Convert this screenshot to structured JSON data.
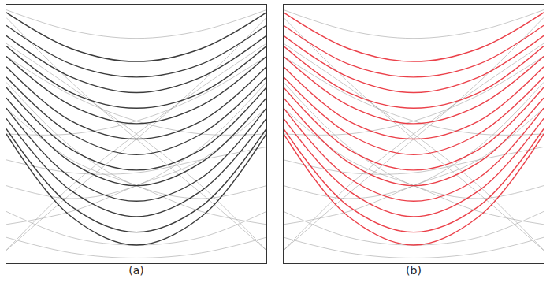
{
  "chart_data": [
    {
      "type": "line",
      "xlabel": "(a)",
      "x": [
        0,
        0.25,
        0.5,
        0.75,
        1
      ],
      "xlim": [
        0,
        1
      ],
      "ylim": [
        0,
        1
      ],
      "xticks": [],
      "yticks": [],
      "tick_labels": false,
      "grid": false,
      "line_style": "solid",
      "series": [
        {
          "color": "#9a9a9a",
          "values": [
            0.95,
            0.7,
            0.48,
            0.27,
            0.05
          ]
        },
        {
          "color": "#9a9a9a",
          "values": [
            0.05,
            0.27,
            0.48,
            0.7,
            0.95
          ]
        },
        {
          "color": "#9a9a9a",
          "values": [
            0.1,
            0.04,
            0.02,
            0.04,
            0.1
          ]
        },
        {
          "color": "#9a9a9a",
          "values": [
            0.2,
            0.1,
            0.07,
            0.1,
            0.2
          ]
        },
        {
          "color": "#9a9a9a",
          "values": [
            0.05,
            0.3,
            0.5,
            0.68,
            0.85
          ]
        },
        {
          "color": "#9a9a9a",
          "values": [
            0.85,
            0.68,
            0.5,
            0.3,
            0.05
          ]
        },
        {
          "color": "#9a9a9a",
          "values": [
            0.8,
            0.65,
            0.55,
            0.5,
            0.5
          ]
        },
        {
          "color": "#9a9a9a",
          "values": [
            0.5,
            0.5,
            0.55,
            0.65,
            0.8
          ]
        },
        {
          "color": "#9a9a9a",
          "values": [
            0.3,
            0.25,
            0.3,
            0.45,
            0.7
          ]
        },
        {
          "color": "#9a9a9a",
          "values": [
            0.7,
            0.45,
            0.3,
            0.25,
            0.3
          ]
        },
        {
          "color": "#9a9a9a",
          "values": [
            0.98,
            0.9,
            0.87,
            0.9,
            0.98
          ]
        },
        {
          "color": "#9a9a9a",
          "values": [
            0.4,
            0.35,
            0.35,
            0.4,
            0.45
          ]
        },
        {
          "color": "#9a9a9a",
          "values": [
            0.15,
            0.2,
            0.3,
            0.4,
            0.6
          ]
        },
        {
          "color": "#9a9a9a",
          "values": [
            0.6,
            0.4,
            0.3,
            0.2,
            0.15
          ]
        },
        {
          "color": "#1a1a1a",
          "values": [
            0.97,
            0.83,
            0.78,
            0.83,
            0.97
          ]
        },
        {
          "color": "#1a1a1a",
          "values": [
            0.92,
            0.77,
            0.72,
            0.77,
            0.92
          ]
        },
        {
          "color": "#1a1a1a",
          "values": [
            0.88,
            0.72,
            0.66,
            0.72,
            0.88
          ]
        },
        {
          "color": "#1a1a1a",
          "values": [
            0.84,
            0.66,
            0.6,
            0.66,
            0.84
          ]
        },
        {
          "color": "#1a1a1a",
          "values": [
            0.8,
            0.61,
            0.54,
            0.61,
            0.8
          ]
        },
        {
          "color": "#1a1a1a",
          "values": [
            0.76,
            0.55,
            0.48,
            0.55,
            0.76
          ]
        },
        {
          "color": "#1a1a1a",
          "values": [
            0.72,
            0.5,
            0.42,
            0.5,
            0.72
          ]
        },
        {
          "color": "#1a1a1a",
          "values": [
            0.68,
            0.44,
            0.36,
            0.44,
            0.68
          ]
        },
        {
          "color": "#1a1a1a",
          "values": [
            0.64,
            0.39,
            0.3,
            0.39,
            0.64
          ]
        },
        {
          "color": "#1a1a1a",
          "values": [
            0.6,
            0.33,
            0.24,
            0.33,
            0.6
          ]
        },
        {
          "color": "#1a1a1a",
          "values": [
            0.56,
            0.28,
            0.18,
            0.28,
            0.56
          ]
        },
        {
          "color": "#1a1a1a",
          "values": [
            0.52,
            0.22,
            0.12,
            0.22,
            0.52
          ]
        },
        {
          "color": "#1a1a1a",
          "values": [
            0.5,
            0.18,
            0.07,
            0.18,
            0.5
          ]
        }
      ]
    },
    {
      "type": "line",
      "xlabel": "(b)",
      "x": [
        0,
        0.25,
        0.5,
        0.75,
        1
      ],
      "xlim": [
        0,
        1
      ],
      "ylim": [
        0,
        1
      ],
      "xticks": [],
      "yticks": [],
      "tick_labels": false,
      "grid": false,
      "line_style": "solid",
      "series": [
        {
          "color": "#9a9a9a",
          "values": [
            0.95,
            0.7,
            0.48,
            0.27,
            0.05
          ]
        },
        {
          "color": "#9a9a9a",
          "values": [
            0.05,
            0.27,
            0.48,
            0.7,
            0.95
          ]
        },
        {
          "color": "#9a9a9a",
          "values": [
            0.1,
            0.04,
            0.02,
            0.04,
            0.1
          ]
        },
        {
          "color": "#9a9a9a",
          "values": [
            0.2,
            0.1,
            0.07,
            0.1,
            0.2
          ]
        },
        {
          "color": "#9a9a9a",
          "values": [
            0.05,
            0.3,
            0.5,
            0.68,
            0.85
          ]
        },
        {
          "color": "#9a9a9a",
          "values": [
            0.85,
            0.68,
            0.5,
            0.3,
            0.05
          ]
        },
        {
          "color": "#9a9a9a",
          "values": [
            0.8,
            0.65,
            0.55,
            0.5,
            0.5
          ]
        },
        {
          "color": "#9a9a9a",
          "values": [
            0.5,
            0.5,
            0.55,
            0.65,
            0.8
          ]
        },
        {
          "color": "#9a9a9a",
          "values": [
            0.3,
            0.25,
            0.3,
            0.45,
            0.7
          ]
        },
        {
          "color": "#9a9a9a",
          "values": [
            0.7,
            0.45,
            0.3,
            0.25,
            0.3
          ]
        },
        {
          "color": "#9a9a9a",
          "values": [
            0.98,
            0.9,
            0.87,
            0.9,
            0.98
          ]
        },
        {
          "color": "#9a9a9a",
          "values": [
            0.4,
            0.35,
            0.35,
            0.4,
            0.45
          ]
        },
        {
          "color": "#9a9a9a",
          "values": [
            0.15,
            0.2,
            0.3,
            0.4,
            0.6
          ]
        },
        {
          "color": "#9a9a9a",
          "values": [
            0.6,
            0.4,
            0.3,
            0.2,
            0.15
          ]
        },
        {
          "color": "#e8202a",
          "values": [
            0.97,
            0.83,
            0.78,
            0.83,
            0.97
          ]
        },
        {
          "color": "#e8202a",
          "values": [
            0.92,
            0.77,
            0.72,
            0.77,
            0.92
          ]
        },
        {
          "color": "#e8202a",
          "values": [
            0.88,
            0.72,
            0.66,
            0.72,
            0.88
          ]
        },
        {
          "color": "#e8202a",
          "values": [
            0.84,
            0.66,
            0.6,
            0.66,
            0.84
          ]
        },
        {
          "color": "#e8202a",
          "values": [
            0.8,
            0.61,
            0.54,
            0.61,
            0.8
          ]
        },
        {
          "color": "#e8202a",
          "values": [
            0.76,
            0.55,
            0.48,
            0.55,
            0.76
          ]
        },
        {
          "color": "#e8202a",
          "values": [
            0.72,
            0.5,
            0.42,
            0.5,
            0.72
          ]
        },
        {
          "color": "#e8202a",
          "values": [
            0.68,
            0.44,
            0.36,
            0.44,
            0.68
          ]
        },
        {
          "color": "#e8202a",
          "values": [
            0.64,
            0.39,
            0.3,
            0.39,
            0.64
          ]
        },
        {
          "color": "#e8202a",
          "values": [
            0.6,
            0.33,
            0.24,
            0.33,
            0.6
          ]
        },
        {
          "color": "#e8202a",
          "values": [
            0.56,
            0.28,
            0.18,
            0.28,
            0.56
          ]
        },
        {
          "color": "#e8202a",
          "values": [
            0.52,
            0.22,
            0.12,
            0.22,
            0.52
          ]
        },
        {
          "color": "#e8202a",
          "values": [
            0.5,
            0.18,
            0.07,
            0.18,
            0.5
          ]
        }
      ]
    }
  ]
}
